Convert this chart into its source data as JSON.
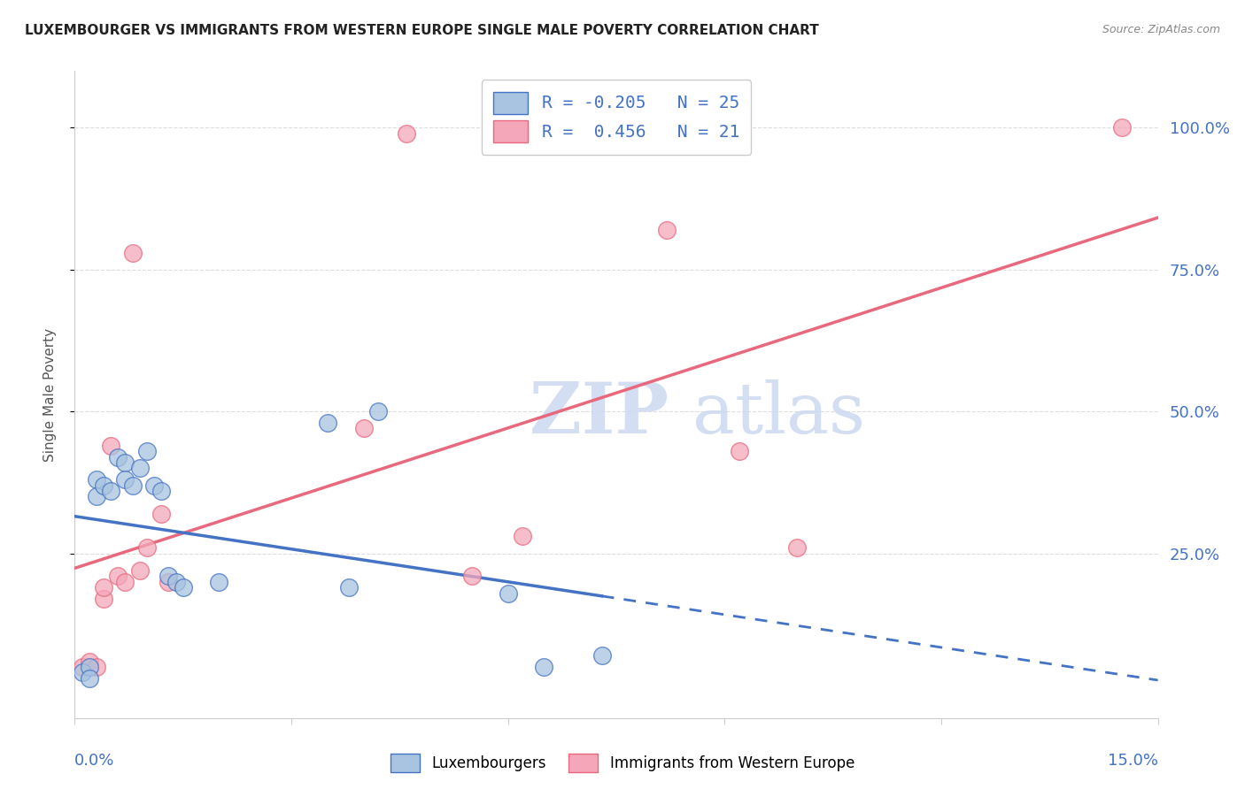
{
  "title": "LUXEMBOURGER VS IMMIGRANTS FROM WESTERN EUROPE SINGLE MALE POVERTY CORRELATION CHART",
  "source": "Source: ZipAtlas.com",
  "ylabel": "Single Male Poverty",
  "ytick_labels": [
    "100.0%",
    "75.0%",
    "50.0%",
    "25.0%"
  ],
  "ytick_values": [
    1.0,
    0.75,
    0.5,
    0.25
  ],
  "xlim": [
    0.0,
    0.15
  ],
  "ylim": [
    -0.04,
    1.1
  ],
  "legend_lux": "R = -0.205   N = 25",
  "legend_imm": "R =  0.456   N = 21",
  "color_lux": "#a8c4e0",
  "color_imm": "#f4a7b9",
  "trendline_lux_color": "#4472c4",
  "trendline_imm_color": "#e8697d",
  "lux_x": [
    0.001,
    0.002,
    0.002,
    0.003,
    0.003,
    0.004,
    0.005,
    0.006,
    0.007,
    0.007,
    0.008,
    0.009,
    0.01,
    0.011,
    0.012,
    0.013,
    0.014,
    0.015,
    0.02,
    0.035,
    0.038,
    0.042,
    0.06,
    0.065,
    0.073
  ],
  "lux_y": [
    0.04,
    0.05,
    0.03,
    0.38,
    0.35,
    0.37,
    0.36,
    0.42,
    0.41,
    0.38,
    0.37,
    0.4,
    0.43,
    0.37,
    0.36,
    0.21,
    0.2,
    0.19,
    0.2,
    0.48,
    0.19,
    0.5,
    0.18,
    0.05,
    0.07
  ],
  "imm_x": [
    0.001,
    0.002,
    0.003,
    0.004,
    0.004,
    0.005,
    0.006,
    0.007,
    0.008,
    0.009,
    0.01,
    0.012,
    0.013,
    0.04,
    0.046,
    0.055,
    0.062,
    0.082,
    0.092,
    0.1,
    0.145
  ],
  "imm_y": [
    0.05,
    0.06,
    0.05,
    0.17,
    0.19,
    0.44,
    0.21,
    0.2,
    0.78,
    0.22,
    0.26,
    0.32,
    0.2,
    0.47,
    0.99,
    0.21,
    0.28,
    0.82,
    0.43,
    0.26,
    1.0
  ],
  "watermark_zip": "ZIP",
  "watermark_atlas": "atlas",
  "legend_color_lux": "#a8c4e0",
  "legend_color_imm": "#f4a7b9",
  "legend_text_color": "#4472c4",
  "title_color": "#222222",
  "source_color": "#888888",
  "ylabel_color": "#555555",
  "bg_color": "#ffffff",
  "grid_color": "#dddddd",
  "axis_color": "#cccccc",
  "bottom_legend_lux": "Luxembourgers",
  "bottom_legend_imm": "Immigrants from Western Europe"
}
